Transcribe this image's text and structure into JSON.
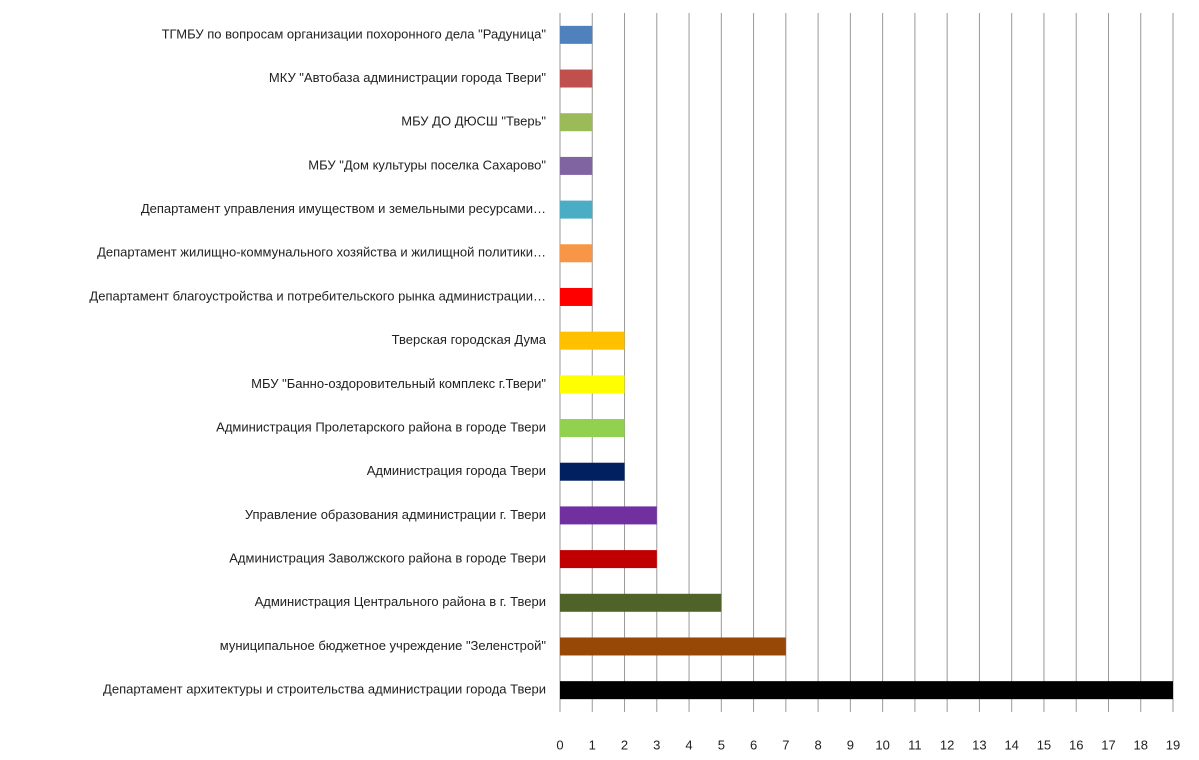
{
  "chart_data": {
    "type": "barh",
    "categories": [
      "ТГМБУ по вопросам организации похоронного дела \"Радуница\"",
      "МКУ \"Автобаза администрации города Твери\"",
      "МБУ ДО ДЮСШ  \"Тверь\"",
      "МБУ \"Дом культуры поселка Сахарово\"",
      "Департамент управления имуществом и земельными ресурсами…",
      "Департамент жилищно-коммунального хозяйства и жилищной политики…",
      "Департамент благоустройства и потребительского рынка администрации…",
      "Тверская городская Дума",
      "МБУ \"Банно-оздоровительный комплекс г.Твери\"",
      "Администрация  Пролетарского района в городе Твери",
      "Администрация  города Твери",
      "Управление образования администрации г. Твери",
      "Администрация  Заволжского района в городе Твери",
      "Администрация  Центрального района в г. Твери",
      "муниципальное бюджетное  учреждение  \"Зеленстрой\"",
      "Департамент архитектуры и строительства администрации города Твери"
    ],
    "values": [
      1,
      1,
      1,
      1,
      1,
      1,
      1,
      2,
      2,
      2,
      2,
      3,
      3,
      5,
      7,
      19
    ],
    "colors": [
      "#4f81bd",
      "#c0504d",
      "#9bbb59",
      "#8064a2",
      "#4bacc6",
      "#f79646",
      "#ff0000",
      "#ffc000",
      "#ffff00",
      "#92d050",
      "#002060",
      "#7030a0",
      "#c00000",
      "#4f6228",
      "#974806",
      "#000000"
    ],
    "xlim": [
      0,
      19
    ],
    "xticks": [
      0,
      1,
      2,
      3,
      4,
      5,
      6,
      7,
      8,
      9,
      10,
      11,
      12,
      13,
      14,
      15,
      16,
      17,
      18,
      19
    ],
    "grid": true
  }
}
